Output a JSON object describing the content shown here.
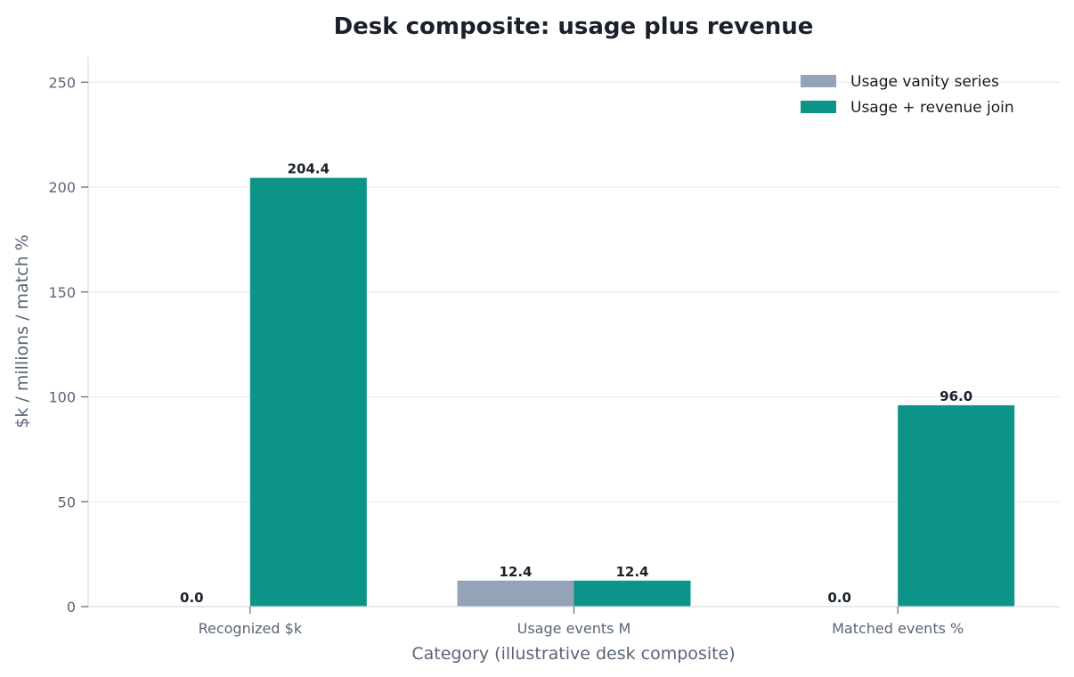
{
  "chart_data": {
    "type": "bar",
    "title": "Desk composite: usage plus revenue",
    "xlabel": "Category (illustrative desk composite)",
    "ylabel": "$k / millions / match %",
    "categories": [
      "Recognized $k",
      "Usage events M",
      "Matched events %"
    ],
    "series": [
      {
        "name": "Usage vanity series",
        "values": [
          0.0,
          12.4,
          0.0
        ],
        "color": "#94a3b8",
        "labels": [
          "0.0",
          "12.4",
          "0.0"
        ]
      },
      {
        "name": "Usage + revenue join",
        "values": [
          204.4,
          12.4,
          96.0
        ],
        "color": "#0d9488",
        "labels": [
          "204.4",
          "12.4",
          "96.0"
        ]
      }
    ],
    "ylim": [
      0,
      262
    ],
    "yticks": [
      0,
      50,
      100,
      150,
      200,
      250
    ],
    "grid": "y",
    "legend_position": "top-right"
  }
}
